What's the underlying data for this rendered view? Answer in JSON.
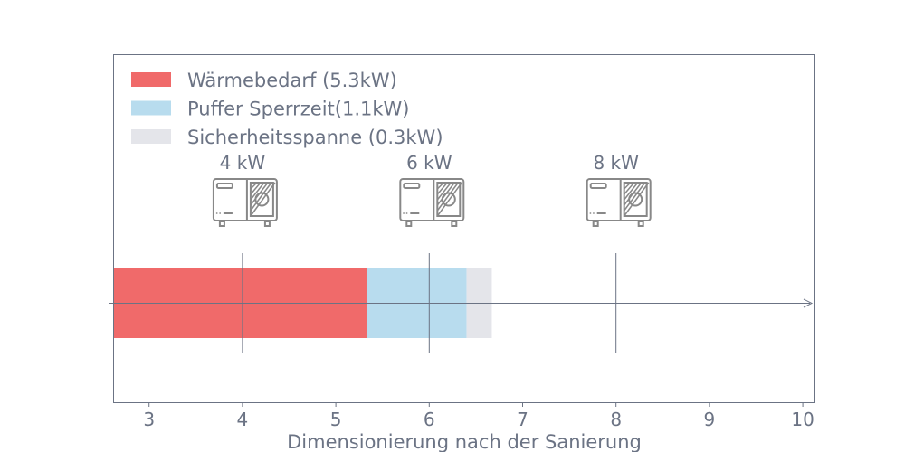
{
  "chart_data": {
    "type": "bar",
    "orientation": "horizontal-stacked",
    "xlabel": "Dimensionierung nach der Sanierung",
    "ylabel": "",
    "xlim": [
      2.62,
      10.13
    ],
    "xticks": [
      3,
      4,
      5,
      6,
      7,
      8,
      9,
      10
    ],
    "grid": false,
    "legend_position": "top-left",
    "series": [
      {
        "name": "Wärmebedarf (5.3kW)",
        "start": 0,
        "value": 5.33,
        "color": "#f06a6a"
      },
      {
        "name": "Puffer Sperrzeit(1.1kW)",
        "start": 5.33,
        "value": 1.07,
        "color": "#b8dcee"
      },
      {
        "name": "Sicherheitsspanne (0.3kW)",
        "start": 6.4,
        "value": 0.27,
        "color": "#e4e5ea"
      }
    ],
    "markers": [
      {
        "x": 4,
        "label": "4 kW",
        "icon": "heat-pump-icon"
      },
      {
        "x": 6,
        "label": "6 kW",
        "icon": "heat-pump-icon"
      },
      {
        "x": 8,
        "label": "8 kW",
        "icon": "heat-pump-icon"
      }
    ],
    "text_color": "#6b7384",
    "axis_color": "#6b7384"
  }
}
